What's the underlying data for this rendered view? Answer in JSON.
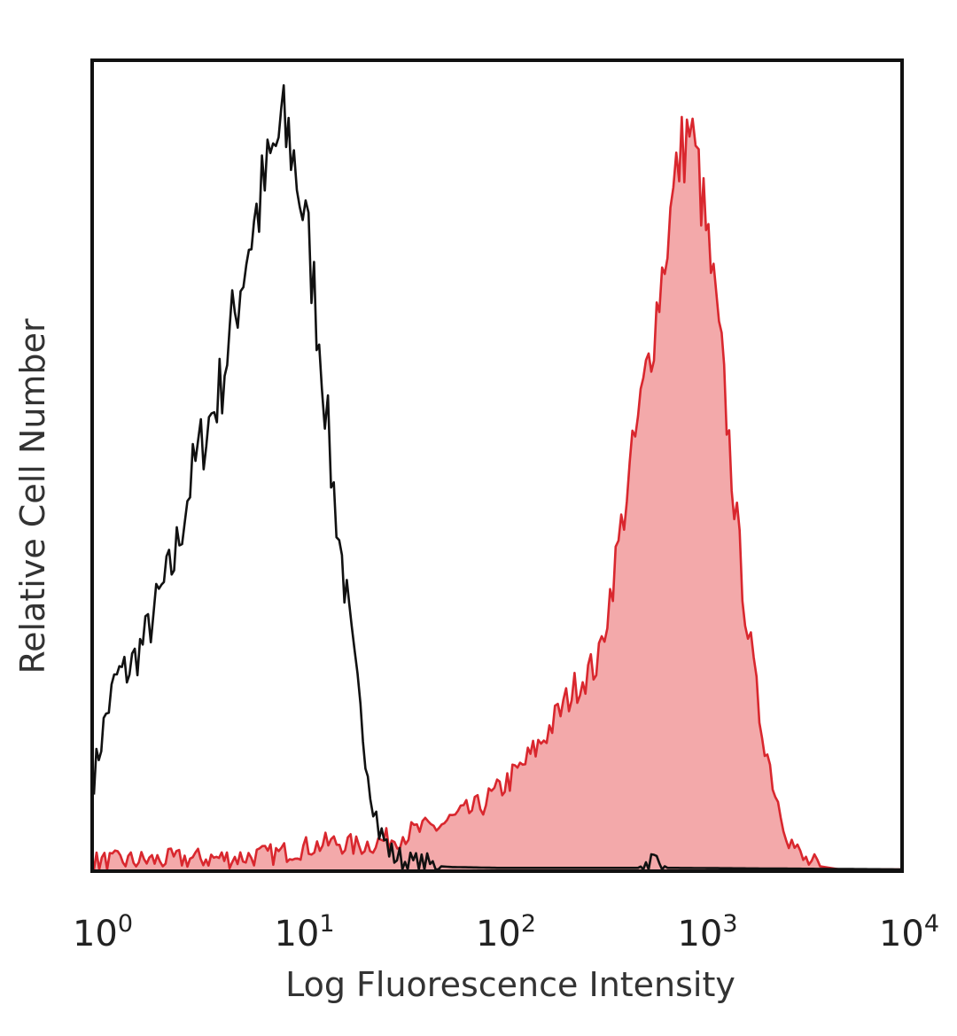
{
  "chart_data": {
    "type": "area",
    "title": "",
    "xlabel": "Log Fluorescence Intensity",
    "ylabel": "Relative Cell Number",
    "x_scale": "log",
    "xlim": [
      1,
      10000
    ],
    "ylim": [
      0,
      1
    ],
    "grid": false,
    "legend": "none",
    "x_ticks": [
      {
        "base": "10",
        "exp": "0",
        "value": 1
      },
      {
        "base": "10",
        "exp": "1",
        "value": 10
      },
      {
        "base": "10",
        "exp": "2",
        "value": 100
      },
      {
        "base": "10",
        "exp": "3",
        "value": 1000
      },
      {
        "base": "10",
        "exp": "4",
        "value": 10000
      }
    ],
    "series": [
      {
        "style": "outline",
        "color": "#111111",
        "points": [
          [
            1.0,
            0.12
          ],
          [
            1.15,
            0.2
          ],
          [
            1.3,
            0.25
          ],
          [
            1.5,
            0.26
          ],
          [
            1.8,
            0.3
          ],
          [
            2.1,
            0.35
          ],
          [
            2.5,
            0.4
          ],
          [
            3.0,
            0.5
          ],
          [
            3.5,
            0.56
          ],
          [
            4.2,
            0.62
          ],
          [
            5.0,
            0.72
          ],
          [
            5.7,
            0.8
          ],
          [
            6.6,
            0.86
          ],
          [
            7.5,
            0.91
          ],
          [
            8.5,
            0.96
          ],
          [
            9.5,
            0.94
          ],
          [
            10.5,
            0.88
          ],
          [
            12.0,
            0.78
          ],
          [
            13.5,
            0.66
          ],
          [
            15.0,
            0.52
          ],
          [
            17.0,
            0.4
          ],
          [
            19.0,
            0.29
          ],
          [
            21.0,
            0.2
          ],
          [
            23.5,
            0.11
          ],
          [
            26.0,
            0.05
          ],
          [
            30.0,
            0.02
          ],
          [
            36.0,
            0.008
          ],
          [
            45.0,
            0.005
          ],
          [
            60.0,
            0.003
          ],
          [
            100.0,
            0.002
          ],
          [
            500.0,
            0.002
          ],
          [
            600.0,
            0.012
          ],
          [
            700.0,
            0.002
          ],
          [
            10000.0,
            0.0
          ]
        ]
      },
      {
        "style": "filled",
        "color": "#d9272e",
        "fill": "#f3a9aa",
        "points": [
          [
            1.0,
            0.01
          ],
          [
            2.0,
            0.012
          ],
          [
            3.0,
            0.014
          ],
          [
            5.0,
            0.015
          ],
          [
            8.0,
            0.02
          ],
          [
            12.0,
            0.03
          ],
          [
            16.0,
            0.035
          ],
          [
            20.0,
            0.03
          ],
          [
            25.0,
            0.035
          ],
          [
            30.0,
            0.04
          ],
          [
            40.0,
            0.05
          ],
          [
            50.0,
            0.055
          ],
          [
            60.0,
            0.065
          ],
          [
            80.0,
            0.08
          ],
          [
            100.0,
            0.1
          ],
          [
            130.0,
            0.13
          ],
          [
            160.0,
            0.16
          ],
          [
            200.0,
            0.2
          ],
          [
            250.0,
            0.24
          ],
          [
            320.0,
            0.27
          ],
          [
            400.0,
            0.42
          ],
          [
            500.0,
            0.58
          ],
          [
            600.0,
            0.7
          ],
          [
            700.0,
            0.82
          ],
          [
            800.0,
            0.92
          ],
          [
            900.0,
            0.96
          ],
          [
            1000.0,
            0.9
          ],
          [
            1150.0,
            0.78
          ],
          [
            1300.0,
            0.66
          ],
          [
            1500.0,
            0.48
          ],
          [
            1700.0,
            0.34
          ],
          [
            2000.0,
            0.2
          ],
          [
            2400.0,
            0.1
          ],
          [
            2800.0,
            0.04
          ],
          [
            3300.0,
            0.012
          ],
          [
            4000.0,
            0.004
          ],
          [
            5000.0,
            0.0
          ],
          [
            10000.0,
            0.0
          ]
        ]
      }
    ]
  }
}
